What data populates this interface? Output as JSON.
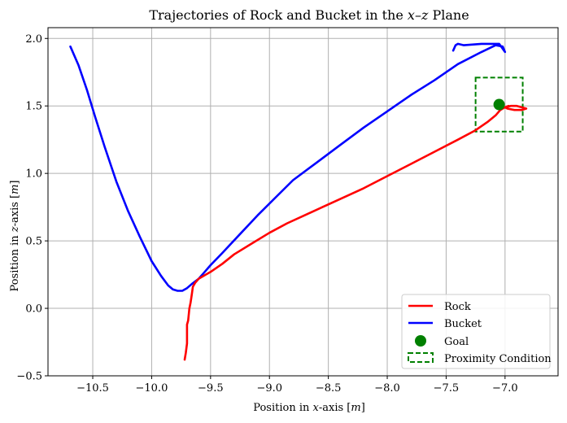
{
  "chart_data": {
    "type": "line",
    "title": "Trajectories of Rock and Bucket in the x–z Plane",
    "xlabel": "Position in x-axis [m]",
    "ylabel": "Position in z-axis [m]",
    "xlim": [
      -10.88,
      -6.55
    ],
    "ylim": [
      -0.5,
      2.08
    ],
    "xticks": [
      -10.5,
      -10.0,
      -9.5,
      -9.0,
      -8.5,
      -8.0,
      -7.5,
      -7.0
    ],
    "xtick_labels": [
      "−10.5",
      "−10.0",
      "−9.5",
      "−9.0",
      "−8.5",
      "−8.0",
      "−7.5",
      "−7.0"
    ],
    "yticks": [
      -0.5,
      0.0,
      0.5,
      1.0,
      1.5,
      2.0
    ],
    "ytick_labels": [
      "−0.5",
      "0.0",
      "0.5",
      "1.0",
      "1.5",
      "2.0"
    ],
    "grid": true,
    "legend_position": "lower-right",
    "series": [
      {
        "name": "Rock",
        "color": "#ff0000",
        "x": [
          -9.72,
          -9.71,
          -9.7,
          -9.7,
          -9.69,
          -9.68,
          -9.67,
          -9.66,
          -9.65,
          -9.63,
          -9.6,
          -9.56,
          -9.5,
          -9.4,
          -9.3,
          -9.15,
          -9.0,
          -8.85,
          -8.7,
          -8.55,
          -8.4,
          -8.2,
          -8.0,
          -7.8,
          -7.6,
          -7.4,
          -7.25,
          -7.15,
          -7.08,
          -7.04,
          -7.0,
          -6.95,
          -6.9,
          -6.86,
          -6.82,
          -6.86,
          -6.92,
          -6.98,
          -7.0,
          -6.97
        ],
        "y": [
          -0.38,
          -0.33,
          -0.26,
          -0.12,
          -0.09,
          0.0,
          0.04,
          0.1,
          0.16,
          0.19,
          0.22,
          0.24,
          0.27,
          0.33,
          0.4,
          0.48,
          0.56,
          0.63,
          0.69,
          0.75,
          0.81,
          0.89,
          0.98,
          1.07,
          1.16,
          1.25,
          1.32,
          1.38,
          1.43,
          1.47,
          1.49,
          1.5,
          1.5,
          1.49,
          1.48,
          1.47,
          1.47,
          1.48,
          1.49,
          1.5
        ]
      },
      {
        "name": "Bucket",
        "color": "#0000ff",
        "x": [
          -10.69,
          -10.62,
          -10.55,
          -10.48,
          -10.4,
          -10.3,
          -10.2,
          -10.1,
          -10.0,
          -9.92,
          -9.86,
          -9.82,
          -9.78,
          -9.74,
          -9.7,
          -9.66,
          -9.6,
          -9.55,
          -9.5,
          -9.4,
          -9.25,
          -9.1,
          -8.95,
          -8.8,
          -8.6,
          -8.4,
          -8.2,
          -8.0,
          -7.8,
          -7.6,
          -7.4,
          -7.2,
          -7.08,
          -7.02,
          -7.0,
          -7.05,
          -7.2,
          -7.35,
          -7.4,
          -7.42,
          -7.44
        ],
        "y": [
          1.94,
          1.8,
          1.62,
          1.42,
          1.2,
          0.94,
          0.72,
          0.53,
          0.35,
          0.24,
          0.17,
          0.14,
          0.13,
          0.13,
          0.15,
          0.18,
          0.22,
          0.27,
          0.32,
          0.41,
          0.55,
          0.69,
          0.82,
          0.95,
          1.08,
          1.21,
          1.34,
          1.46,
          1.58,
          1.69,
          1.81,
          1.9,
          1.95,
          1.94,
          1.9,
          1.96,
          1.96,
          1.95,
          1.96,
          1.95,
          1.91
        ]
      }
    ],
    "goal": {
      "name": "Goal",
      "x": -7.05,
      "y": 1.51,
      "color": "#008000"
    },
    "proximity": {
      "name": "Proximity Condition",
      "x0": -7.25,
      "x1": -6.85,
      "y0": 1.31,
      "y1": 1.71,
      "color": "#008000"
    }
  }
}
